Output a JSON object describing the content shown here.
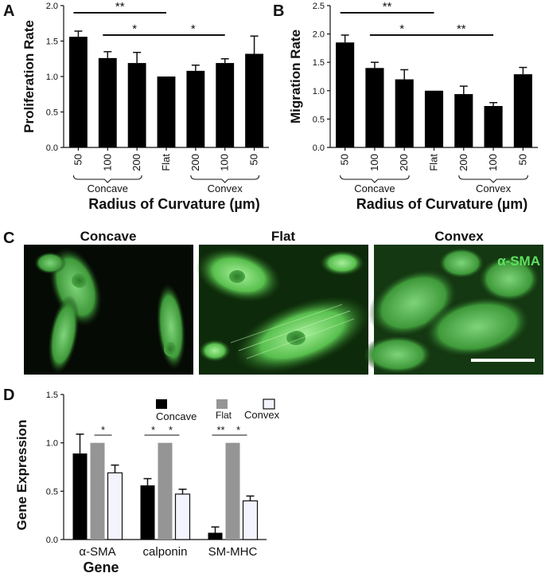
{
  "panels": {
    "A": "A",
    "B": "B",
    "C": "C",
    "D": "D"
  },
  "chart_data": [
    {
      "panel": "A",
      "type": "bar",
      "categories": [
        "50",
        "100",
        "200",
        "Flat",
        "200",
        "100",
        "50"
      ],
      "values": [
        1.56,
        1.26,
        1.19,
        1.0,
        1.08,
        1.19,
        1.32
      ],
      "errors": [
        0.08,
        0.09,
        0.15,
        0.0,
        0.08,
        0.06,
        0.25
      ],
      "ylabel": "Proliferation Rate",
      "xlabel": "Radius of Curvature (µm)",
      "ylim": [
        0,
        2.0
      ],
      "yticks": [
        "0.0",
        "0.5",
        "1.0",
        "1.5",
        "2.0"
      ],
      "groups": [
        {
          "label": "Concave",
          "from": 0,
          "to": 2
        },
        {
          "label": "Convex",
          "from": 4,
          "to": 6
        }
      ],
      "significance": [
        {
          "from": 0,
          "to": 3,
          "label": "**"
        },
        {
          "from": 1,
          "to": 3,
          "label": "*"
        },
        {
          "from": 3,
          "to": 5,
          "label": "*"
        }
      ],
      "color": "#000000"
    },
    {
      "panel": "B",
      "type": "bar",
      "categories": [
        "50",
        "100",
        "200",
        "Flat",
        "200",
        "100",
        "50"
      ],
      "values": [
        1.85,
        1.4,
        1.2,
        1.0,
        0.94,
        0.73,
        1.29
      ],
      "errors": [
        0.13,
        0.1,
        0.17,
        0.0,
        0.14,
        0.06,
        0.12
      ],
      "ylabel": "Migration Rate",
      "xlabel": "Radius of Curvature (µm)",
      "ylim": [
        0,
        2.5
      ],
      "yticks": [
        "0.0",
        "0.5",
        "1.0",
        "1.5",
        "2.0",
        "2.5"
      ],
      "groups": [
        {
          "label": "Concave",
          "from": 0,
          "to": 2
        },
        {
          "label": "Convex",
          "from": 4,
          "to": 6
        }
      ],
      "significance": [
        {
          "from": 0,
          "to": 3,
          "label": "**"
        },
        {
          "from": 1,
          "to": 3,
          "label": "*"
        },
        {
          "from": 3,
          "to": 5,
          "label": "**"
        }
      ],
      "color": "#000000"
    },
    {
      "panel": "D",
      "type": "bar",
      "categories": [
        "α-SMA",
        "calponin",
        "SM-MHC"
      ],
      "series": [
        {
          "name": "Concave",
          "values": [
            0.89,
            0.56,
            0.07
          ],
          "errors": [
            0.2,
            0.07,
            0.06
          ],
          "color": "#000000"
        },
        {
          "name": "Flat",
          "values": [
            1.0,
            1.0,
            1.0
          ],
          "errors": [
            0.0,
            0.0,
            0.0
          ],
          "color": "#959595"
        },
        {
          "name": "Convex",
          "values": [
            0.69,
            0.47,
            0.4
          ],
          "errors": [
            0.08,
            0.05,
            0.05
          ],
          "color": "#f4f4ff"
        }
      ],
      "ylabel": "Gene Expression",
      "xlabel": "Gene",
      "ylim": [
        0,
        1.5
      ],
      "yticks": [
        "0.0",
        "0.5",
        "1.0",
        "1.5"
      ],
      "legend": "top",
      "significance": [
        {
          "category": 0,
          "from": 1,
          "to": 2,
          "label": "*"
        },
        {
          "category": 1,
          "from": 0,
          "to": 1,
          "label": "*"
        },
        {
          "category": 1,
          "from": 1,
          "to": 2,
          "label": "*"
        },
        {
          "category": 2,
          "from": 0,
          "to": 1,
          "label": "**"
        },
        {
          "category": 2,
          "from": 1,
          "to": 2,
          "label": "*"
        }
      ]
    }
  ],
  "images": {
    "concave_title": "Concave",
    "flat_title": "Flat",
    "convex_title": "Convex",
    "stain_label": "α-SMA",
    "stain_color": "#5fe05f"
  }
}
